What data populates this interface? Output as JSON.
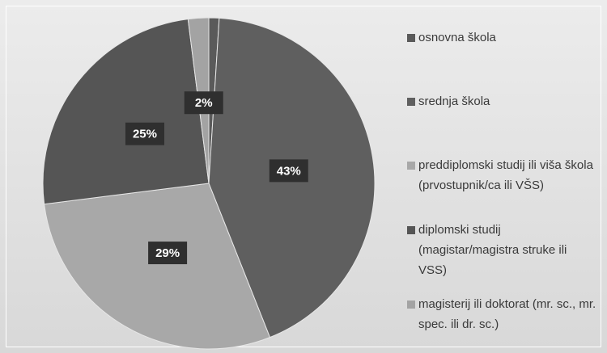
{
  "chart_data": {
    "type": "pie",
    "categories": [
      "osnovna škola",
      "srednja škola",
      "preddiplomski studij ili viša škola (prvostupnik/ca ili VŠS)",
      "diplomski studij (magistar/magistra struke ili VSS)",
      "magisterij ili doktorat (mr. sc., mr. spec. ili dr. sc.)"
    ],
    "values": [
      1,
      43,
      29,
      25,
      2
    ],
    "value_labels": [
      null,
      "43%",
      "29%",
      "25%",
      "2%"
    ],
    "colors": [
      "#5a5a5a",
      "#5f5f5f",
      "#a8a8a8",
      "#555555",
      "#a3a3a3"
    ],
    "legend": "right"
  }
}
